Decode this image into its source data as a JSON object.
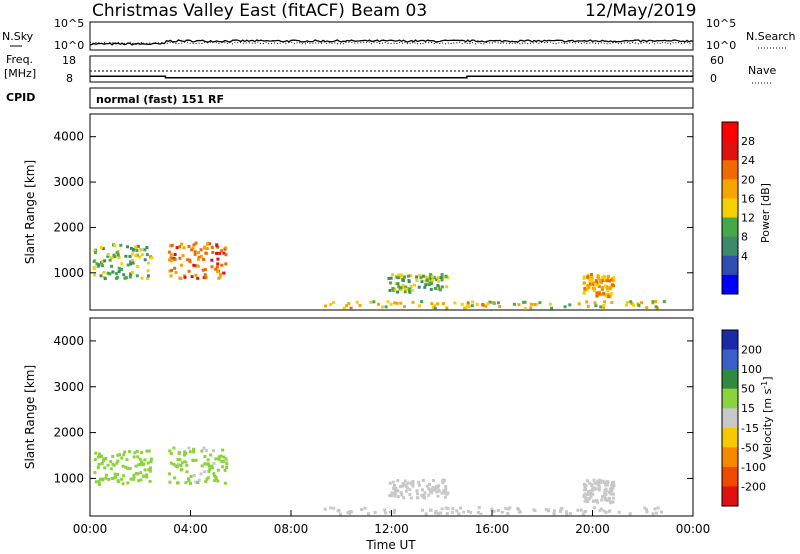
{
  "header": {
    "station": "Christmas Valley East (fitACF)",
    "beam": "Beam 03",
    "date": "12/May/2019"
  },
  "nsky_panel": {
    "left_label": "N.Sky",
    "right_label": "N.Search",
    "left_ticks": [
      "10^5",
      "10^0"
    ],
    "right_ticks": [
      "10^5",
      "10^0"
    ]
  },
  "freq_panel": {
    "left_label_1": "Freq.",
    "left_label_2": "[MHz]",
    "right_label": "Nave",
    "left_ticks": [
      "18",
      "8"
    ],
    "right_ticks": [
      "60",
      "0"
    ]
  },
  "cpid_panel": {
    "label": "CPID",
    "text": "normal (fast) 151 RF"
  },
  "chart_data": [
    {
      "type": "line",
      "name": "N.Sky / N.Search noise",
      "x_unit": "hours UT",
      "x": [
        0,
        3,
        3,
        24
      ],
      "nsky_level": "low, stepping up at 03:00",
      "ylim_log10": [
        0,
        5
      ]
    },
    {
      "type": "line",
      "name": "Frequency",
      "x": [
        0,
        3,
        3,
        15,
        15,
        24
      ],
      "y_mhz": [
        10.2,
        10.2,
        9.6,
        9.6,
        10.2,
        10.2
      ],
      "ylim": [
        8,
        18
      ]
    },
    {
      "type": "heatmap",
      "name": "Power",
      "xlabel": "",
      "ylabel": "Slant Range [km]",
      "xlim": [
        0,
        24
      ],
      "ylim": [
        180,
        4500
      ],
      "yticks": [
        1000,
        2000,
        3000,
        4000
      ],
      "colorbar_label": "Power [dB]",
      "colorbar_ticks": [
        4,
        8,
        12,
        16,
        20,
        24,
        28
      ],
      "colorbar_colors": [
        "#0000ff",
        "#2e4fb0",
        "#3d8a6a",
        "#46a84a",
        "#f5d000",
        "#f5a400",
        "#f06a00",
        "#e01010",
        "#ff0000"
      ],
      "regions": [
        {
          "t0": 0.1,
          "t1": 2.4,
          "r0": 900,
          "r1": 1650,
          "level": 12
        },
        {
          "t0": 3.1,
          "t1": 5.4,
          "r0": 900,
          "r1": 1700,
          "level": 22
        },
        {
          "t0": 9.3,
          "t1": 22.8,
          "r0": 250,
          "r1": 400,
          "level": 16
        },
        {
          "t0": 11.8,
          "t1": 14.2,
          "r0": 600,
          "r1": 1000,
          "level": 12
        },
        {
          "t0": 19.6,
          "t1": 20.8,
          "r0": 500,
          "r1": 1000,
          "level": 18
        }
      ]
    },
    {
      "type": "heatmap",
      "name": "Velocity",
      "xlabel": "Time UT",
      "ylabel": "Slant Range [km]",
      "xlim": [
        0,
        24
      ],
      "ylim": [
        180,
        4500
      ],
      "yticks": [
        1000,
        2000,
        3000,
        4000
      ],
      "xticks": [
        "00:00",
        "04:00",
        "08:00",
        "12:00",
        "16:00",
        "20:00",
        "00:00"
      ],
      "colorbar_label": "Velocity [m s^-1]",
      "colorbar_ticks": [
        "200",
        "100",
        "50",
        "15",
        "-15",
        "-50",
        "-100",
        "-200"
      ],
      "colorbar_colors": [
        "#1a2aa8",
        "#3a5fc8",
        "#2e8a3e",
        "#8ad33a",
        "#c8c8c8",
        "#f5c800",
        "#f58a00",
        "#f04a00",
        "#e01010"
      ],
      "regions": [
        {
          "t0": 0.1,
          "t1": 2.4,
          "r0": 900,
          "r1": 1650,
          "level": 60
        },
        {
          "t0": 3.1,
          "t1": 5.4,
          "r0": 900,
          "r1": 1700,
          "level": 30
        },
        {
          "t0": 9.3,
          "t1": 22.8,
          "r0": 250,
          "r1": 400,
          "level": 0
        },
        {
          "t0": 11.8,
          "t1": 14.2,
          "r0": 600,
          "r1": 1000,
          "level": 0
        },
        {
          "t0": 19.6,
          "t1": 20.8,
          "r0": 500,
          "r1": 1000,
          "level": 0
        }
      ]
    }
  ],
  "colorbar_power": {
    "label": "Power [dB]",
    "ticks": [
      "28",
      "24",
      "20",
      "16",
      "12",
      "8",
      "4"
    ]
  },
  "colorbar_velocity": {
    "label": "Velocity [m s",
    "label_sup": "-1",
    "label_end": "]",
    "ticks": [
      "200",
      "100",
      "50",
      "15",
      "-15",
      "-50",
      "-100",
      "-200"
    ]
  },
  "axes": {
    "ylabel": "Slant Range [km]",
    "yticks": [
      "4000",
      "3000",
      "2000",
      "1000"
    ],
    "xticks": [
      "00:00",
      "04:00",
      "08:00",
      "12:00",
      "16:00",
      "20:00",
      "00:00"
    ],
    "xlabel": "Time UT"
  }
}
